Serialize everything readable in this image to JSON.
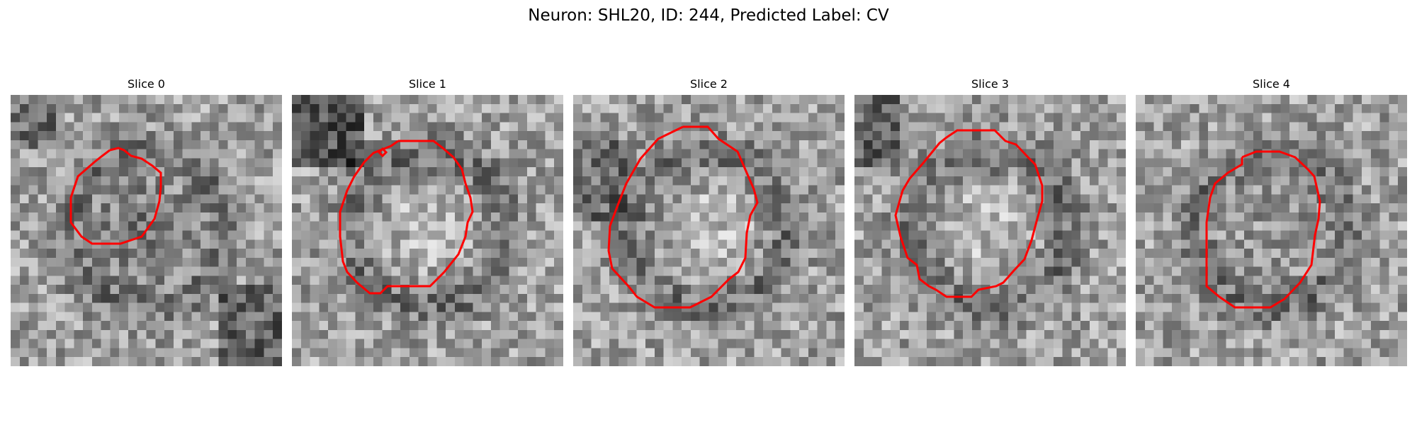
{
  "figure": {
    "title": "Neuron: SHL20, ID: 244, Predicted Label: CV",
    "contour_color": "#ff0000",
    "colormap": "gray"
  },
  "slices": [
    {
      "label": "Slice 0",
      "center_tone": "dark"
    },
    {
      "label": "Slice 1",
      "center_tone": "light"
    },
    {
      "label": "Slice 2",
      "center_tone": "light"
    },
    {
      "label": "Slice 3",
      "center_tone": "light"
    },
    {
      "label": "Slice 4",
      "center_tone": "medium"
    }
  ]
}
